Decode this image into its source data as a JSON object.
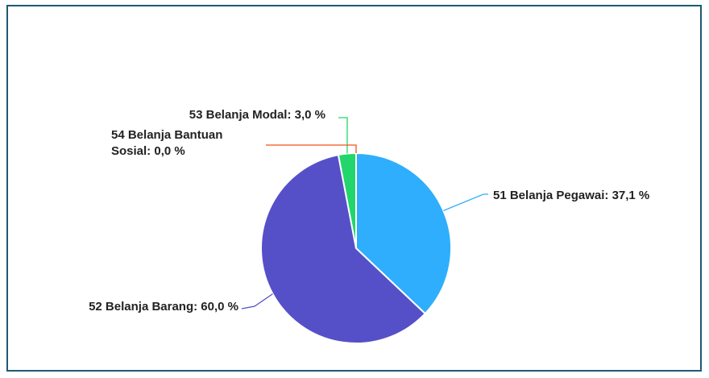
{
  "chart_data": {
    "type": "pie",
    "values": [
      37.1,
      60.0,
      3.0,
      0.0
    ],
    "value_labels": [
      "51 Belanja Pegawai: 37,1 %",
      "52 Belanja Barang: 60,0 %",
      "53 Belanja Modal: 3,0 %",
      "54 Belanja Bantuan Sosial: 0,0 %"
    ],
    "colors": [
      "#2eaefc",
      "#5550c8",
      "#22d66b",
      "#f4511e"
    ]
  }
}
